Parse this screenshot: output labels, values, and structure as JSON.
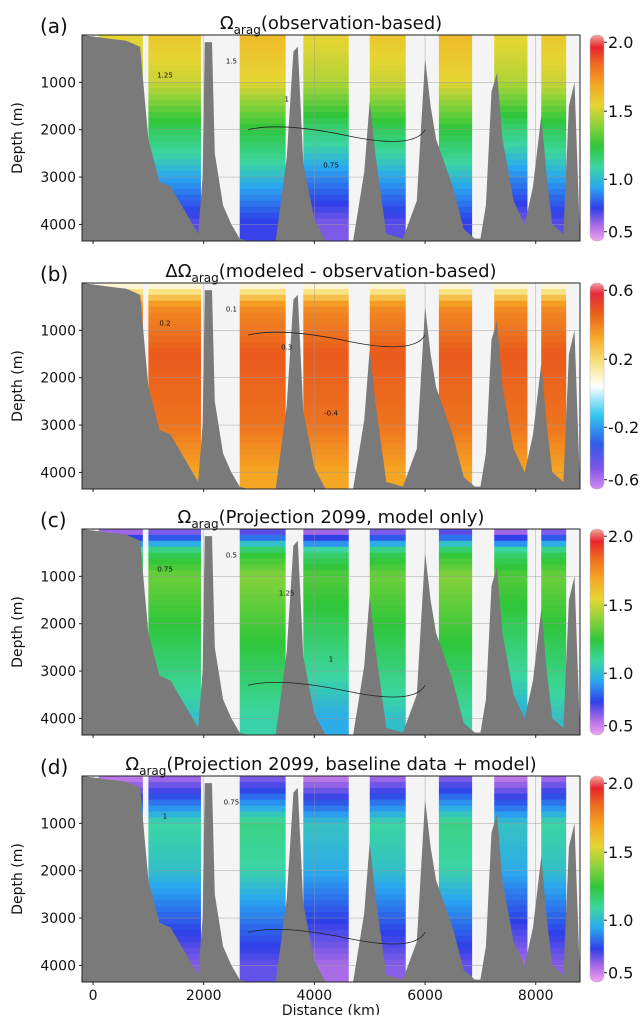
{
  "figure": {
    "xlabel": "Distance (km)",
    "xticks": [
      0,
      2000,
      4000,
      6000,
      8000
    ],
    "xlim": [
      -200,
      8800
    ],
    "ylabel": "Depth (m)",
    "yticks": [
      1000,
      2000,
      3000,
      4000
    ],
    "ylim": [
      0,
      4350
    ],
    "panels": [
      {
        "letter": "(a)",
        "prefix": "",
        "symbol": "Ω",
        "sub": "arag",
        "suffix": "(observation-based)",
        "colorbar_ticks": [
          "2.0",
          "1.5",
          "1.0",
          "0.5"
        ]
      },
      {
        "letter": "(b)",
        "prefix": "Δ",
        "symbol": "Ω",
        "sub": "arag",
        "suffix": "(modeled - observation-based)",
        "colorbar_ticks": [
          "0.6",
          "0.2",
          "-0.2",
          "-0.6"
        ]
      },
      {
        "letter": "(c)",
        "prefix": "",
        "symbol": "Ω",
        "sub": "arag",
        "suffix": "(Projection 2099, model only)",
        "colorbar_ticks": [
          "2.0",
          "1.5",
          "1.0",
          "0.5"
        ]
      },
      {
        "letter": "(d)",
        "prefix": "",
        "symbol": "Ω",
        "sub": "arag",
        "suffix": "(Projection 2099, baseline data + model)",
        "colorbar_ticks": [
          "2.0",
          "1.5",
          "1.0",
          "0.5"
        ]
      }
    ]
  },
  "chart_data": [
    {
      "type": "heatmap",
      "panel": "(a)",
      "variable": "Ωarag (observation-based)",
      "xlim": [
        -200,
        8800
      ],
      "ylim": [
        0,
        4350
      ],
      "color_range": [
        0.5,
        2.0
      ],
      "x": [
        1300,
        1700,
        3000,
        4300,
        5300,
        6800,
        7500,
        8200
      ],
      "depth_profile": [
        [
          0,
          1.5
        ],
        [
          1000,
          1.4
        ],
        [
          2000,
          1.1
        ],
        [
          3000,
          0.9
        ],
        [
          4000,
          0.7
        ]
      ],
      "contour_labels": [
        1.5,
        1.25,
        1,
        0.75
      ]
    },
    {
      "type": "heatmap",
      "panel": "(b)",
      "variable": "ΔΩarag (modeled - observation-based)",
      "xlim": [
        -200,
        8800
      ],
      "ylim": [
        0,
        4350
      ],
      "color_range": [
        -0.6,
        0.6
      ],
      "x": [
        1300,
        1700,
        3000,
        4300,
        5300,
        6800,
        7500,
        8200
      ],
      "depth_profile": [
        [
          0,
          0.0
        ],
        [
          500,
          0.25
        ],
        [
          1500,
          0.35
        ],
        [
          3000,
          0.3
        ],
        [
          4000,
          0.2
        ]
      ],
      "contour_labels": [
        0.1,
        0.2,
        0.3,
        -0.4
      ]
    },
    {
      "type": "heatmap",
      "panel": "(c)",
      "variable": "Ωarag (Projection 2099, model only)",
      "xlim": [
        -200,
        8800
      ],
      "ylim": [
        0,
        4350
      ],
      "color_range": [
        0.5,
        2.0
      ],
      "x": [
        1300,
        1700,
        3000,
        4300,
        5300,
        6800,
        7500,
        8200
      ],
      "depth_profile": [
        [
          0,
          0.6
        ],
        [
          500,
          1.1
        ],
        [
          1000,
          1.25
        ],
        [
          2000,
          1.15
        ],
        [
          3000,
          1.05
        ],
        [
          4000,
          0.95
        ]
      ],
      "contour_labels": [
        0.5,
        0.75,
        1.25,
        1
      ]
    },
    {
      "type": "heatmap",
      "panel": "(d)",
      "variable": "Ωarag (Projection 2099, baseline data + model)",
      "xlim": [
        -200,
        8800
      ],
      "ylim": [
        0,
        4350
      ],
      "color_range": [
        0.5,
        2.0
      ],
      "x": [
        1300,
        1700,
        3000,
        4300,
        5300,
        6800,
        7500,
        8200
      ],
      "depth_profile": [
        [
          0,
          0.6
        ],
        [
          1000,
          1.0
        ],
        [
          2000,
          0.95
        ],
        [
          3000,
          0.8
        ],
        [
          4000,
          0.65
        ]
      ],
      "contour_labels": [
        0.75,
        1
      ]
    }
  ]
}
